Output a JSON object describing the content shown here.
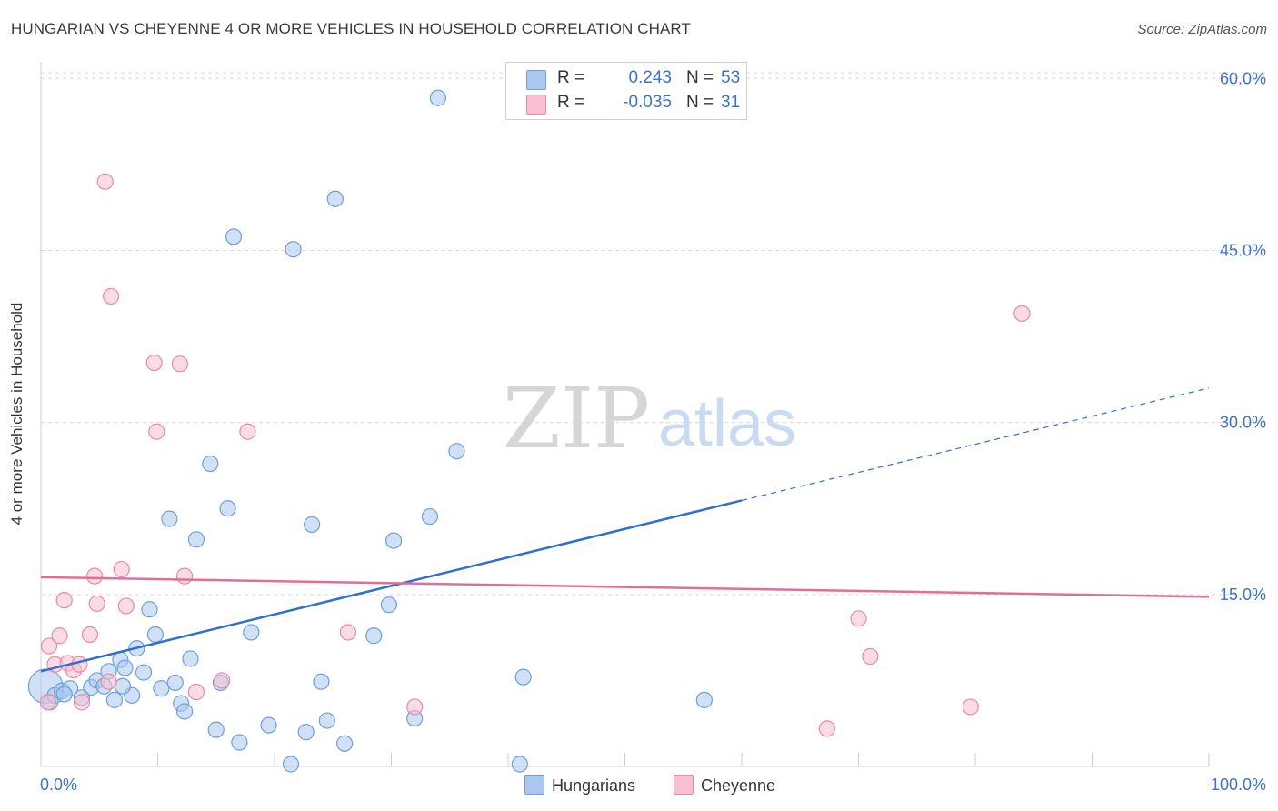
{
  "title": "HUNGARIAN VS CHEYENNE 4 OR MORE VEHICLES IN HOUSEHOLD CORRELATION CHART",
  "source": "Source: ZipAtlas.com",
  "watermark": {
    "zip": "ZIP",
    "atlas": "atlas"
  },
  "colors": {
    "hungarians_fill": "#aac8ef",
    "hungarians_stroke": "#6f9fdc",
    "hungarians_line": "#2e6fcf",
    "cheyenne_fill": "#f7bfd0",
    "cheyenne_stroke": "#e88aa8",
    "cheyenne_line": "#e46d98",
    "axis_text": "#3d72c8",
    "grid": "#d9d9d9"
  },
  "legend": {
    "rows": [
      {
        "r_label": "R =",
        "r_value": "0.243",
        "n_label": "N =",
        "n_value": "53"
      },
      {
        "r_label": "R =",
        "r_value": "-0.035",
        "n_label": "N =",
        "n_value": "31"
      }
    ]
  },
  "bottom_legend": [
    "Hungarians",
    "Cheyenne"
  ],
  "chart_data": {
    "type": "scatter",
    "title": "HUNGARIAN VS CHEYENNE 4 OR MORE VEHICLES IN HOUSEHOLD CORRELATION CHART",
    "xlabel": "",
    "ylabel": "4 or more Vehicles in Household",
    "xlim": [
      0,
      100
    ],
    "ylim": [
      0,
      60.5
    ],
    "x_tick_labels": [
      "0.0%",
      "100.0%"
    ],
    "y_ticks": [
      15,
      30,
      45,
      60
    ],
    "y_tick_labels": [
      "15.0%",
      "30.0%",
      "45.0%",
      "60.0%"
    ],
    "grid": "horizontal dashed",
    "legend_placement": "top-center",
    "series": [
      {
        "name": "Hungarians",
        "r": 0.243,
        "n": 53,
        "trend": {
          "x0": 0,
          "y0": 8.3,
          "x1": 60,
          "y1": 23.2,
          "dashed_to_x": 100,
          "dashed_to_y": 33.0
        },
        "points": [
          [
            0.4,
            7.0,
            2.2
          ],
          [
            0.8,
            5.6,
            1
          ],
          [
            1.2,
            6.2,
            1
          ],
          [
            1.8,
            6.6,
            1
          ],
          [
            2.5,
            6.8,
            1
          ],
          [
            3.5,
            6.0,
            1
          ],
          [
            4.3,
            6.9,
            1
          ],
          [
            4.8,
            7.5,
            1
          ],
          [
            5.4,
            7.0,
            1
          ],
          [
            5.8,
            8.3,
            1
          ],
          [
            6.3,
            5.8,
            1
          ],
          [
            6.8,
            9.3,
            1
          ],
          [
            7.2,
            8.6,
            1
          ],
          [
            7.8,
            6.2,
            1
          ],
          [
            8.2,
            10.3,
            1
          ],
          [
            8.8,
            8.2,
            1
          ],
          [
            9.3,
            13.7,
            1
          ],
          [
            9.8,
            11.5,
            1
          ],
          [
            10.3,
            6.8,
            1
          ],
          [
            11.0,
            21.6,
            1
          ],
          [
            11.5,
            7.3,
            1
          ],
          [
            12.0,
            5.5,
            1
          ],
          [
            12.3,
            4.8,
            1
          ],
          [
            12.8,
            9.4,
            1
          ],
          [
            13.3,
            19.8,
            1
          ],
          [
            14.5,
            26.4,
            1
          ],
          [
            15.0,
            3.2,
            1
          ],
          [
            15.4,
            7.3,
            1
          ],
          [
            16.0,
            22.5,
            1
          ],
          [
            16.5,
            46.2,
            1
          ],
          [
            17.0,
            2.1,
            1
          ],
          [
            18.0,
            11.7,
            1
          ],
          [
            19.5,
            3.6,
            1
          ],
          [
            21.4,
            0.2,
            1
          ],
          [
            21.6,
            45.1,
            1
          ],
          [
            22.7,
            3.0,
            1
          ],
          [
            23.2,
            21.1,
            1
          ],
          [
            24.0,
            7.4,
            1
          ],
          [
            24.5,
            4.0,
            1
          ],
          [
            25.2,
            49.5,
            1
          ],
          [
            26.0,
            2.0,
            1
          ],
          [
            28.5,
            11.4,
            1
          ],
          [
            29.8,
            14.1,
            1
          ],
          [
            30.2,
            19.7,
            1
          ],
          [
            32.0,
            4.2,
            1
          ],
          [
            33.3,
            21.8,
            1
          ],
          [
            34.0,
            58.3,
            1
          ],
          [
            35.6,
            27.5,
            1
          ],
          [
            41.0,
            0.2,
            1
          ],
          [
            41.3,
            7.8,
            1
          ],
          [
            56.8,
            5.8,
            1
          ],
          [
            2.0,
            6.3,
            1
          ],
          [
            7.0,
            7.0,
            1
          ]
        ]
      },
      {
        "name": "Cheyenne",
        "r": -0.035,
        "n": 31,
        "trend": {
          "x0": 0,
          "y0": 16.5,
          "x1": 100,
          "y1": 14.8
        },
        "points": [
          [
            0.6,
            5.6,
            1
          ],
          [
            0.7,
            10.5,
            1
          ],
          [
            1.2,
            8.9,
            1
          ],
          [
            1.6,
            11.4,
            1
          ],
          [
            2.0,
            14.5,
            1
          ],
          [
            2.3,
            9.0,
            1
          ],
          [
            2.8,
            8.4,
            1
          ],
          [
            3.3,
            8.9,
            1
          ],
          [
            3.5,
            5.6,
            1
          ],
          [
            4.2,
            11.5,
            1
          ],
          [
            4.6,
            16.6,
            1
          ],
          [
            4.8,
            14.2,
            1
          ],
          [
            5.5,
            51.0,
            1
          ],
          [
            5.8,
            7.4,
            1
          ],
          [
            6.0,
            41.0,
            1
          ],
          [
            6.9,
            17.2,
            1
          ],
          [
            7.3,
            14.0,
            1
          ],
          [
            9.7,
            35.2,
            1
          ],
          [
            9.9,
            29.2,
            1
          ],
          [
            11.9,
            35.1,
            1
          ],
          [
            12.3,
            16.6,
            1
          ],
          [
            13.3,
            6.5,
            1
          ],
          [
            15.5,
            7.5,
            1
          ],
          [
            17.7,
            29.2,
            1
          ],
          [
            26.3,
            11.7,
            1
          ],
          [
            32.0,
            5.2,
            1
          ],
          [
            67.3,
            3.3,
            1
          ],
          [
            70.0,
            12.9,
            1
          ],
          [
            71.0,
            9.6,
            1
          ],
          [
            79.6,
            5.2,
            1
          ],
          [
            84.0,
            39.5,
            1
          ]
        ]
      }
    ]
  }
}
